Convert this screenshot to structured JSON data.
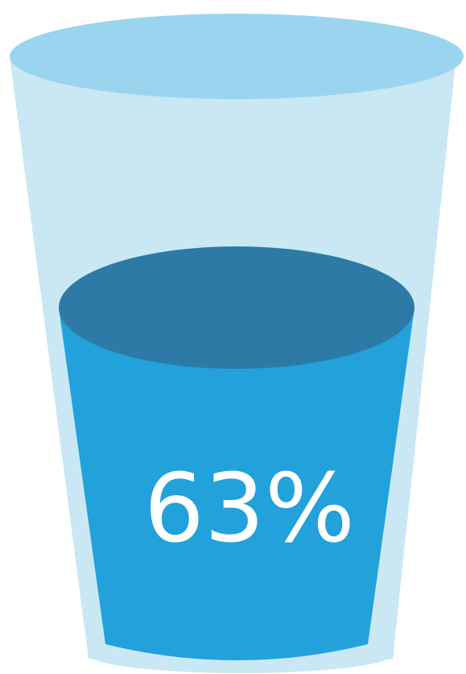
{
  "glass": {
    "fill_percent": 63,
    "label": "63%"
  },
  "colors": {
    "glass_body": "#c9e8f4",
    "glass_rim": "#9bd4ee",
    "glass_base": "#c9e8f4",
    "water_body": "#22a1da",
    "water_surface": "#2d7aa6",
    "label_text": "#ffffff"
  }
}
